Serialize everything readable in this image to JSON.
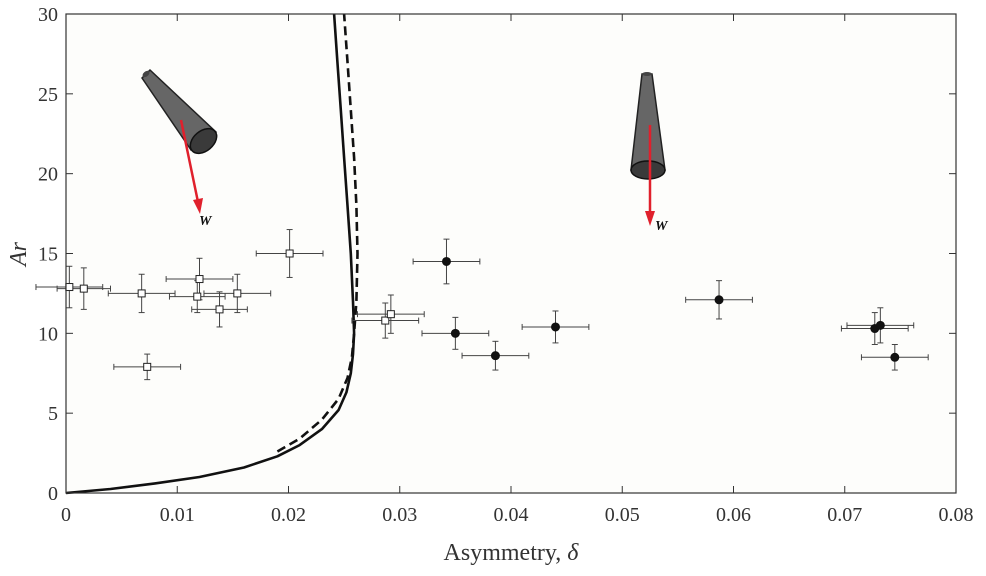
{
  "chart_data": {
    "type": "scatter",
    "title": "",
    "xlabel_text": "Asymmetry, ",
    "xlabel_symbol": "δ",
    "ylabel": "Ar",
    "xlim": [
      0,
      0.08
    ],
    "ylim": [
      0,
      30
    ],
    "xticks": [
      0,
      0.01,
      0.02,
      0.03,
      0.04,
      0.05,
      0.06,
      0.07,
      0.08
    ],
    "xtick_labels": [
      "0",
      "0.01",
      "0.02",
      "0.03",
      "0.04",
      "0.05",
      "0.06",
      "0.07",
      "0.08"
    ],
    "yticks": [
      0,
      5,
      10,
      15,
      20,
      25,
      30
    ],
    "ytick_labels": [
      "0",
      "5",
      "10",
      "15",
      "20",
      "25",
      "30"
    ],
    "grid": false,
    "series": [
      {
        "name": "open squares (tilted)",
        "marker": "open-square",
        "points": [
          {
            "x": 0.0003,
            "y": 12.9,
            "xerr": 0.003,
            "yerr": 1.3
          },
          {
            "x": 0.0016,
            "y": 12.8,
            "xerr": 0.0024,
            "yerr": 1.3
          },
          {
            "x": 0.0068,
            "y": 12.5,
            "xerr": 0.003,
            "yerr": 1.2
          },
          {
            "x": 0.0073,
            "y": 7.9,
            "xerr": 0.003,
            "yerr": 0.8
          },
          {
            "x": 0.0118,
            "y": 12.3,
            "xerr": 0.0025,
            "yerr": 1.0
          },
          {
            "x": 0.012,
            "y": 13.4,
            "xerr": 0.003,
            "yerr": 1.3
          },
          {
            "x": 0.0138,
            "y": 11.5,
            "xerr": 0.0025,
            "yerr": 1.1
          },
          {
            "x": 0.0154,
            "y": 12.5,
            "xerr": 0.003,
            "yerr": 1.2
          },
          {
            "x": 0.0201,
            "y": 15.0,
            "xerr": 0.003,
            "yerr": 1.5
          },
          {
            "x": 0.0287,
            "y": 10.8,
            "xerr": 0.003,
            "yerr": 1.1
          },
          {
            "x": 0.0292,
            "y": 11.2,
            "xerr": 0.003,
            "yerr": 1.2
          }
        ]
      },
      {
        "name": "filled circles (vertical)",
        "marker": "filled-circle",
        "points": [
          {
            "x": 0.0342,
            "y": 14.5,
            "xerr": 0.003,
            "yerr": 1.4
          },
          {
            "x": 0.035,
            "y": 10.0,
            "xerr": 0.003,
            "yerr": 1.0
          },
          {
            "x": 0.0386,
            "y": 8.6,
            "xerr": 0.003,
            "yerr": 0.9
          },
          {
            "x": 0.044,
            "y": 10.4,
            "xerr": 0.003,
            "yerr": 1.0
          },
          {
            "x": 0.0587,
            "y": 12.1,
            "xerr": 0.003,
            "yerr": 1.2
          },
          {
            "x": 0.0727,
            "y": 10.3,
            "xerr": 0.003,
            "yerr": 1.0
          },
          {
            "x": 0.0732,
            "y": 10.5,
            "xerr": 0.003,
            "yerr": 1.1
          },
          {
            "x": 0.0745,
            "y": 8.5,
            "xerr": 0.003,
            "yerr": 0.8
          }
        ]
      }
    ],
    "curves": [
      {
        "name": "solid boundary",
        "style": "solid",
        "points": [
          [
            0,
            0
          ],
          [
            0.004,
            0.25
          ],
          [
            0.008,
            0.6
          ],
          [
            0.012,
            1.0
          ],
          [
            0.016,
            1.6
          ],
          [
            0.019,
            2.3
          ],
          [
            0.021,
            3.0
          ],
          [
            0.023,
            4.0
          ],
          [
            0.0245,
            5.2
          ],
          [
            0.0252,
            6.3
          ],
          [
            0.0256,
            7.5
          ],
          [
            0.0258,
            8.7
          ],
          [
            0.0259,
            10.0
          ],
          [
            0.0258,
            12.0
          ],
          [
            0.0256,
            15.0
          ],
          [
            0.0253,
            18.0
          ],
          [
            0.025,
            21.0
          ],
          [
            0.0247,
            24.0
          ],
          [
            0.0244,
            27.0
          ],
          [
            0.0241,
            30.0
          ]
        ]
      },
      {
        "name": "dashed boundary",
        "style": "dashed",
        "points": [
          [
            0.019,
            2.6
          ],
          [
            0.021,
            3.4
          ],
          [
            0.023,
            4.6
          ],
          [
            0.0245,
            5.9
          ],
          [
            0.0253,
            7.2
          ],
          [
            0.0257,
            8.5
          ],
          [
            0.0259,
            10.0
          ],
          [
            0.0261,
            12.0
          ],
          [
            0.0262,
            15.0
          ],
          [
            0.0261,
            18.0
          ],
          [
            0.0259,
            21.0
          ],
          [
            0.0256,
            24.0
          ],
          [
            0.0253,
            27.0
          ],
          [
            0.025,
            30.0
          ]
        ]
      }
    ],
    "annotations": [
      {
        "name": "tilted-cone",
        "label": "W",
        "x": 0.011,
        "y": 24.2
      },
      {
        "name": "vertical-cone",
        "label": "W",
        "x": 0.0523,
        "y": 22.5
      }
    ]
  },
  "colors": {
    "axis": "#333333",
    "plot_bg": "#ffffff",
    "line": "#111111",
    "arrow": "#e0202c",
    "cone": "#555555"
  }
}
